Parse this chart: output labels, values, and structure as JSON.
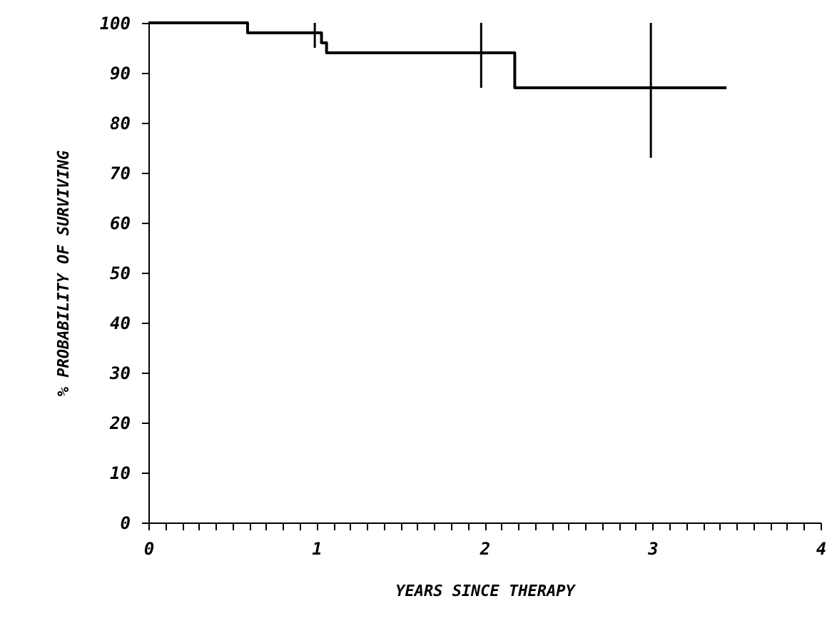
{
  "chart_data": {
    "type": "step",
    "xlabel": "YEARS SINCE THERAPY",
    "ylabel": "% PROBABILITY OF SURVIVING",
    "x": [
      0,
      0.59,
      0.99,
      1.03,
      1.06,
      1.98,
      2.18,
      2.99,
      3.44
    ],
    "values": [
      100,
      98,
      98,
      96,
      94,
      94,
      87,
      87,
      87
    ],
    "errors": [
      null,
      null,
      [
        95,
        100
      ],
      null,
      null,
      [
        87,
        100
      ],
      null,
      [
        73,
        100
      ],
      null
    ],
    "color": "#000000",
    "marker": "none",
    "line_style": "solid",
    "grid": false,
    "xlim": [
      0,
      4
    ],
    "xticks": [
      0,
      {
        "value": 0.1,
        "label": null
      },
      {
        "value": 0.2,
        "label": null
      },
      {
        "value": 0.3,
        "label": null
      },
      {
        "value": 0.4,
        "label": null
      },
      {
        "value": 0.5,
        "label": null
      },
      {
        "value": 0.6,
        "label": null
      },
      {
        "value": 0.7,
        "label": null
      },
      {
        "value": 0.8,
        "label": null
      },
      {
        "value": 0.9,
        "label": null
      },
      1,
      {
        "value": 1.1,
        "label": null
      },
      {
        "value": 1.2,
        "label": null
      },
      {
        "value": 1.3,
        "label": null
      },
      {
        "value": 1.4,
        "label": null
      },
      {
        "value": 1.5,
        "label": null
      },
      {
        "value": 1.6,
        "label": null
      },
      {
        "value": 1.7,
        "label": null
      },
      {
        "value": 1.8,
        "label": null
      },
      {
        "value": 1.9,
        "label": null
      },
      2,
      {
        "value": 2.1,
        "label": null
      },
      {
        "value": 2.2,
        "label": null
      },
      {
        "value": 2.3,
        "label": null
      },
      {
        "value": 2.4,
        "label": null
      },
      {
        "value": 2.5,
        "label": null
      },
      {
        "value": 2.6,
        "label": null
      },
      {
        "value": 2.7,
        "label": null
      },
      {
        "value": 2.8,
        "label": null
      },
      {
        "value": 2.9,
        "label": null
      },
      3,
      {
        "value": 3.1,
        "label": null
      },
      {
        "value": 3.2,
        "label": null
      },
      {
        "value": 3.3,
        "label": null
      },
      {
        "value": 3.4,
        "label": null
      },
      {
        "value": 3.5,
        "label": null
      },
      {
        "value": 3.6,
        "label": null
      },
      {
        "value": 3.7,
        "label": null
      },
      {
        "value": 3.8,
        "label": null
      },
      {
        "value": 3.9,
        "label": null
      },
      4
    ],
    "ylim": [
      0,
      100
    ],
    "yticks": [
      0,
      10,
      20,
      30,
      40,
      50,
      60,
      70,
      80,
      90,
      100
    ]
  }
}
